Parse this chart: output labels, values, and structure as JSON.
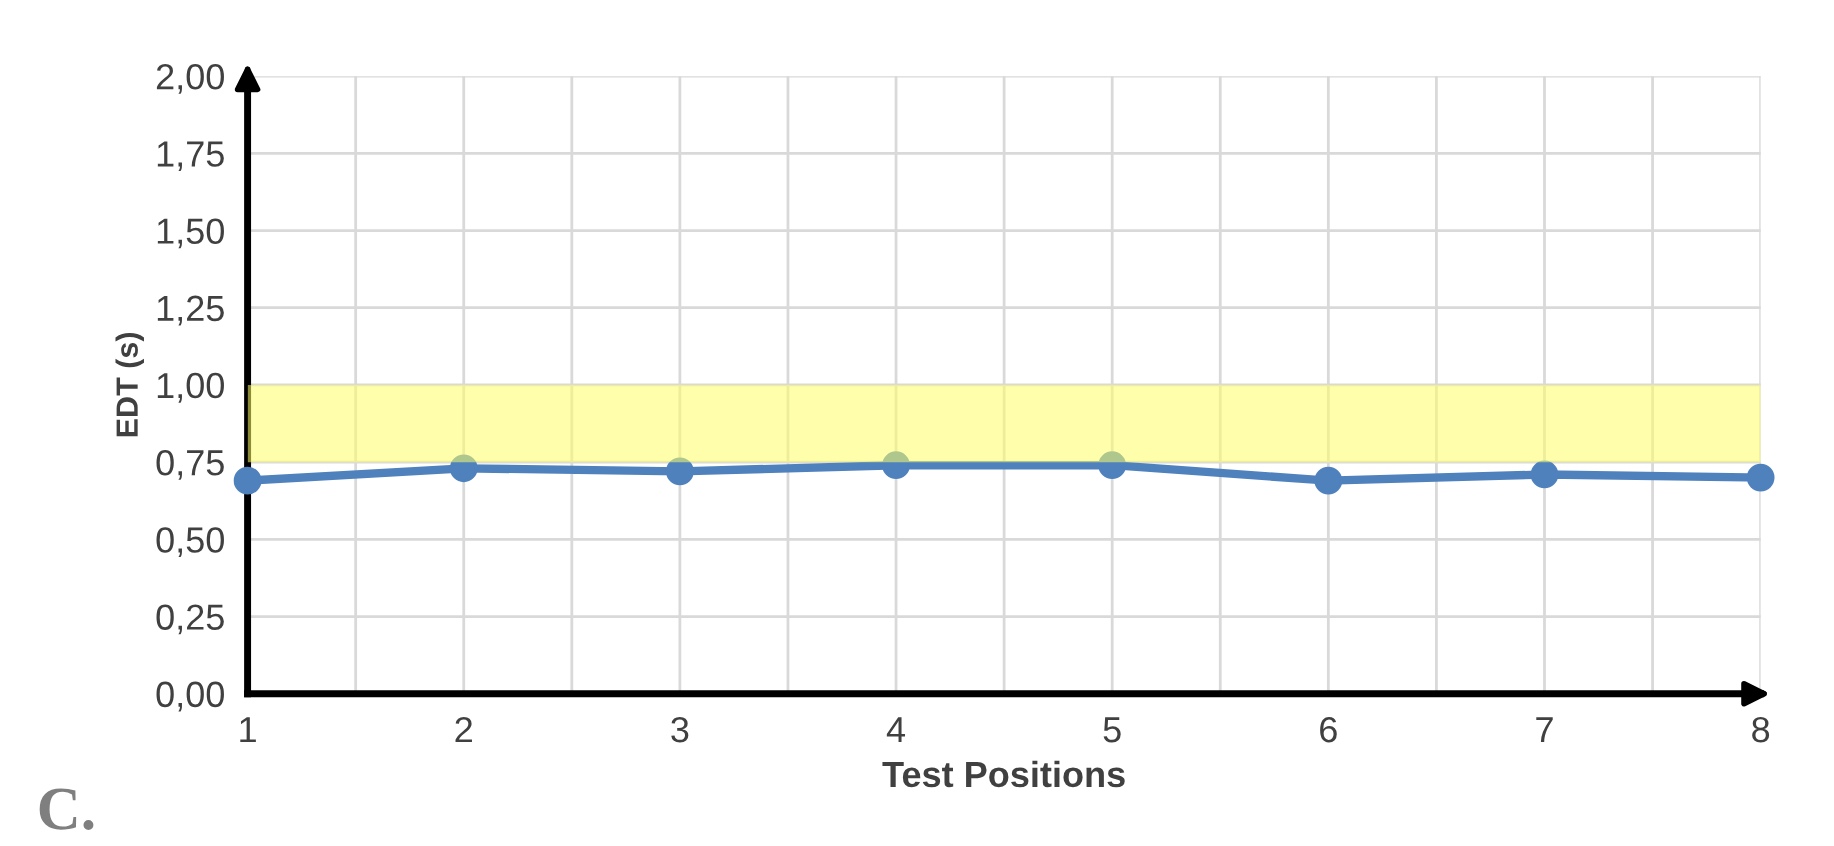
{
  "chart_data": {
    "type": "line",
    "xlabel": "Test Positions",
    "ylabel": "EDT (s)",
    "x": [
      1,
      2,
      3,
      4,
      5,
      6,
      7,
      8
    ],
    "series": [
      {
        "color": "#4f81bd",
        "values": [
          0.69,
          0.73,
          0.72,
          0.74,
          0.74,
          0.69,
          0.71,
          0.7
        ]
      }
    ],
    "marker": "circle",
    "line_style": "solid",
    "xlim": [
      1,
      8
    ],
    "xticks": [
      1,
      {
        "value": 1.5,
        "label": null
      },
      2,
      {
        "value": 2.5,
        "label": null
      },
      3,
      {
        "value": 3.5,
        "label": null
      },
      4,
      {
        "value": 4.5,
        "label": null
      },
      5,
      {
        "value": 5.5,
        "label": null
      },
      6,
      {
        "value": 6.5,
        "label": null
      },
      7,
      {
        "value": 7.5,
        "label": null
      },
      8
    ],
    "ylim": [
      0,
      2
    ],
    "yticks": [
      {
        "value": 0,
        "label": "0,00"
      },
      {
        "value": 0.25,
        "label": "0,25"
      },
      {
        "value": 0.5,
        "label": "0,50"
      },
      {
        "value": 0.75,
        "label": "0,75"
      },
      {
        "value": 1,
        "label": "1,00"
      },
      {
        "value": 1.25,
        "label": "1,25"
      },
      {
        "value": 1.5,
        "label": "1,50"
      },
      {
        "value": 1.75,
        "label": "1,75"
      },
      {
        "value": 2,
        "label": "2,00"
      }
    ],
    "bands": [
      {
        "axis": "y",
        "from": 0.75,
        "to": 1.0,
        "color": "#ffff66"
      }
    ],
    "grid": true,
    "annotations": [
      "C."
    ]
  }
}
